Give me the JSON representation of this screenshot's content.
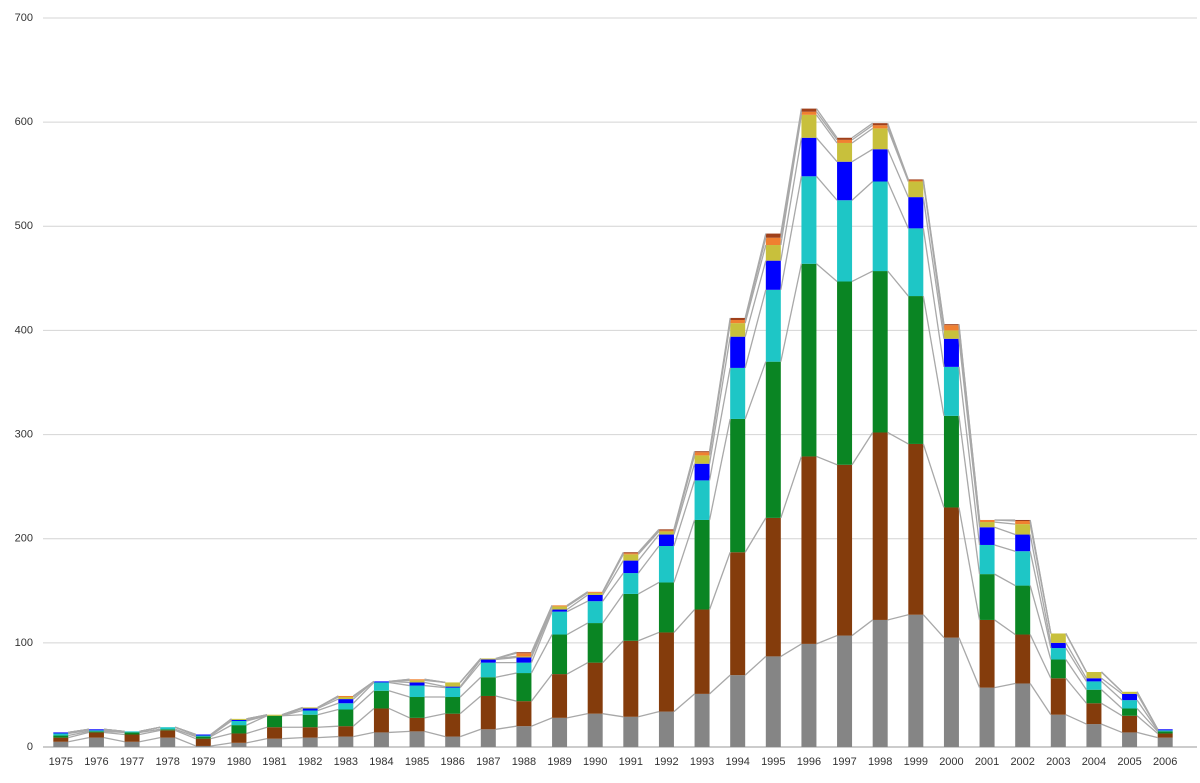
{
  "chart_data": {
    "type": "stacked-bar",
    "categories": [
      "1975",
      "1976",
      "1977",
      "1978",
      "1979",
      "1980",
      "1981",
      "1982",
      "1983",
      "1984",
      "1985",
      "1986",
      "1987",
      "1988",
      "1989",
      "1990",
      "1991",
      "1992",
      "1993",
      "1994",
      "1995",
      "1996",
      "1997",
      "1998",
      "1999",
      "2000",
      "2001",
      "2002",
      "2003",
      "2004",
      "2005",
      "2006"
    ],
    "series": [
      {
        "color": "#858585",
        "values": [
          5,
          9,
          5,
          9,
          1,
          4,
          8,
          9,
          10,
          14,
          15,
          10,
          17,
          20,
          28,
          32,
          29,
          34,
          51,
          69,
          87,
          99,
          107,
          122,
          127,
          105,
          57,
          61,
          31,
          22,
          14,
          9
        ]
      },
      {
        "color": "#843c0c",
        "values": [
          4,
          5,
          7,
          7,
          7,
          9,
          11,
          10,
          10,
          23,
          13,
          22,
          32,
          24,
          42,
          49,
          73,
          76,
          81,
          118,
          133,
          180,
          164,
          180,
          164,
          125,
          65,
          47,
          35,
          20,
          16,
          4
        ]
      },
      {
        "color": "#0a8523",
        "values": [
          2,
          1,
          2,
          1,
          2,
          8,
          11,
          12,
          16,
          17,
          20,
          16,
          18,
          27,
          38,
          38,
          45,
          48,
          86,
          128,
          150,
          185,
          176,
          155,
          142,
          88,
          44,
          47,
          18,
          13,
          7,
          2
        ]
      },
      {
        "color": "#1ec6c6",
        "values": [
          2,
          1,
          1,
          2,
          1,
          4,
          0,
          4,
          6,
          8,
          11,
          9,
          14,
          10,
          22,
          21,
          20,
          35,
          38,
          49,
          69,
          84,
          78,
          86,
          65,
          47,
          28,
          33,
          11,
          8,
          8,
          1
        ]
      },
      {
        "color": "#0000ff",
        "values": [
          1,
          1,
          0,
          0,
          1,
          1,
          0,
          2,
          4,
          1,
          3,
          1,
          3,
          5,
          2,
          6,
          12,
          11,
          16,
          30,
          28,
          37,
          37,
          31,
          30,
          27,
          17,
          16,
          5,
          3,
          6,
          1
        ]
      },
      {
        "color": "#c8c03c",
        "values": [
          0,
          0,
          0,
          0,
          0,
          1,
          1,
          1,
          2,
          0,
          2,
          4,
          1,
          1,
          3,
          2,
          6,
          3,
          8,
          13,
          15,
          22,
          18,
          20,
          15,
          8,
          5,
          10,
          9,
          6,
          2,
          0
        ]
      },
      {
        "color": "#f08030",
        "values": [
          0,
          0,
          0,
          0,
          0,
          0,
          0,
          0,
          1,
          0,
          1,
          0,
          0,
          3,
          1,
          1,
          1,
          1,
          3,
          3,
          7,
          3,
          3,
          3,
          1,
          5,
          2,
          3,
          0,
          0,
          0,
          0
        ]
      },
      {
        "color": "#a0401a",
        "values": [
          0,
          0,
          0,
          0,
          0,
          0,
          0,
          0,
          0,
          0,
          0,
          0,
          0,
          1,
          0,
          0,
          1,
          1,
          1,
          2,
          4,
          3,
          2,
          2,
          1,
          1,
          0,
          1,
          0,
          0,
          0,
          0
        ]
      }
    ],
    "ylim": [
      0,
      700
    ],
    "yticks": [
      0,
      100,
      200,
      300,
      400,
      500,
      600,
      700
    ],
    "grid": true,
    "series_lines": true
  }
}
